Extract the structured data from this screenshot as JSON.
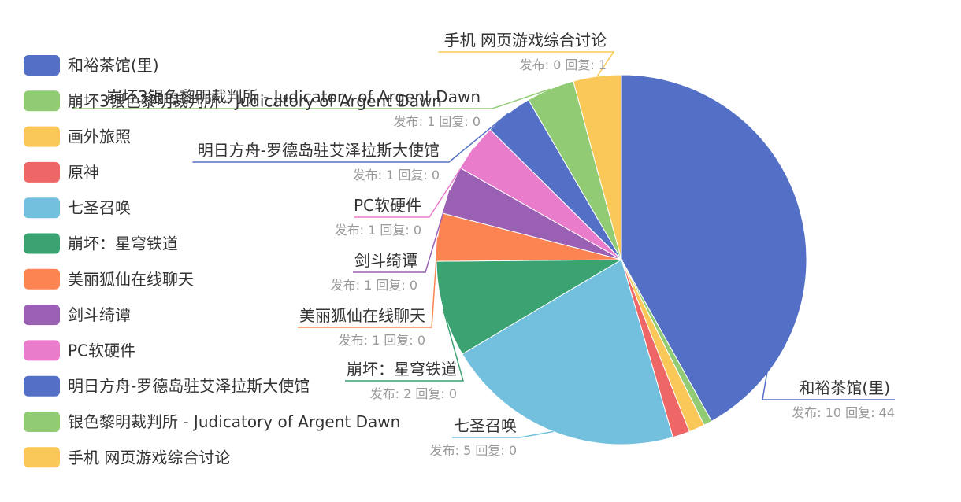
{
  "chart_data": {
    "type": "pie",
    "start_position": "top",
    "direction": "clockwise",
    "legend_position": "left",
    "series": [
      {
        "name": "和裕茶馆(里)",
        "value": 10,
        "stats": "发布: 10 回复: 44",
        "color": "#5470c6"
      },
      {
        "name": "七圣召唤",
        "value": 5,
        "stats": "发布: 5 回复: 0",
        "color": "#73c0de"
      },
      {
        "name": "崩坏：星穹铁道",
        "value": 2,
        "stats": "发布: 2 回复: 0",
        "color": "#3ba272"
      },
      {
        "name": "美丽狐仙在线聊天",
        "value": 1,
        "stats": "发布: 1 回复: 0",
        "color": "#fc8452"
      },
      {
        "name": "剑斗绮谭",
        "value": 1,
        "stats": "发布: 1 回复: 0",
        "color": "#9a60b4"
      },
      {
        "name": "PC软硬件",
        "value": 1,
        "stats": "发布: 1 回复: 0",
        "color": "#ea7ccc"
      },
      {
        "name": "明日方舟-罗德岛驻艾泽拉斯大使馆",
        "value": 1,
        "stats": "发布: 1 回复: 0",
        "color": "#5470c6"
      },
      {
        "name": "崩坏3银色黎明裁判所 - Judicatory of Argent Dawn",
        "value": 1,
        "stats": "发布: 1 回复: 0",
        "color": "#91cc75"
      },
      {
        "name": "手机 网页游戏综合讨论",
        "value": 1,
        "stats": "发布: 0 回复: 1",
        "color": "#fac858"
      }
    ],
    "legend": [
      {
        "label": "和裕茶馆(里)",
        "color": "#5470c6"
      },
      {
        "label": "崩坏3银色黎明裁判所 - Judicatory of Argent Dawn",
        "color": "#91cc75"
      },
      {
        "label": "画外旅照",
        "color": "#fac858"
      },
      {
        "label": "原神",
        "color": "#ee6666"
      },
      {
        "label": "七圣召唤",
        "color": "#73c0de"
      },
      {
        "label": "崩坏：星穹铁道",
        "color": "#3ba272"
      },
      {
        "label": "美丽狐仙在线聊天",
        "color": "#fc8452"
      },
      {
        "label": "剑斗绮谭",
        "color": "#9a60b4"
      },
      {
        "label": "PC软硬件",
        "color": "#ea7ccc"
      },
      {
        "label": "明日方舟-罗德岛驻艾泽拉斯大使馆",
        "color": "#5470c6"
      },
      {
        "label": "银色黎明裁判所 - Judicatory of Argent Dawn",
        "color": "#91cc75"
      },
      {
        "label": "手机 网页游戏综合讨论",
        "color": "#fac858"
      }
    ],
    "extra_slices": [
      {
        "name": "银色黎明裁判所 - Judicatory of Argent Dawn",
        "color": "#91cc75"
      },
      {
        "name": "画外旅照",
        "color": "#fac858"
      },
      {
        "name": "原神",
        "color": "#ee6666"
      }
    ]
  }
}
